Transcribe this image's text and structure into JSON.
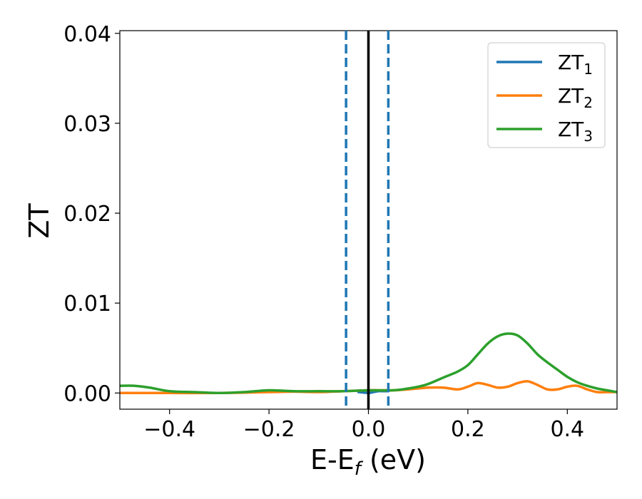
{
  "chart_data": {
    "type": "line",
    "title": "",
    "xlabel": "E-E",
    "xlabel_subscript": "f",
    "xlabel_unit": " (eV)",
    "ylabel": "ZT",
    "xlim": [
      -0.5,
      0.5
    ],
    "ylim": [
      -0.0018,
      0.0403
    ],
    "grid": false,
    "legend_position": "top-right",
    "x_ticks": [
      -0.4,
      -0.2,
      0.0,
      0.2,
      0.4
    ],
    "x_tick_labels": [
      "−0.4",
      "−0.2",
      "0.0",
      "0.2",
      "0.4"
    ],
    "y_ticks": [
      0.0,
      0.01,
      0.02,
      0.03,
      0.04
    ],
    "y_tick_labels": [
      "0.00",
      "0.01",
      "0.02",
      "0.03",
      "0.04"
    ],
    "vertical_lines": [
      {
        "x": -0.045,
        "style": "dashed",
        "color": "#1f77b4"
      },
      {
        "x": 0.04,
        "style": "dashed",
        "color": "#1f77b4"
      },
      {
        "x": 0.0,
        "style": "solid",
        "color": "#000000"
      }
    ],
    "series": [
      {
        "name": "ZT",
        "name_subscript": "1",
        "color": "#1f77b4",
        "x": [
          -0.02,
          -0.01,
          0.0,
          0.01,
          0.02,
          0.03,
          0.04
        ],
        "y": [
          0.0001,
          5e-05,
          0.0,
          0.0001,
          0.0002,
          0.0002,
          0.0002
        ]
      },
      {
        "name": "ZT",
        "name_subscript": "2",
        "color": "#ff7f0e",
        "x": [
          -0.5,
          -0.4,
          -0.3,
          -0.2,
          -0.15,
          -0.1,
          -0.05,
          0.0,
          0.03,
          0.05,
          0.08,
          0.12,
          0.15,
          0.18,
          0.2,
          0.22,
          0.24,
          0.26,
          0.28,
          0.3,
          0.32,
          0.34,
          0.36,
          0.38,
          0.4,
          0.42,
          0.44,
          0.46,
          0.48,
          0.5
        ],
        "y": [
          0.0,
          0.0,
          0.0,
          0.0001,
          0.00015,
          0.0001,
          0.0002,
          0.0003,
          0.0003,
          0.0003,
          0.0004,
          0.0006,
          0.0006,
          0.0004,
          0.0007,
          0.0011,
          0.0009,
          0.0006,
          0.0007,
          0.0011,
          0.0013,
          0.0009,
          0.0004,
          0.0004,
          0.0007,
          0.0008,
          0.0004,
          0.0001,
          0.0001,
          0.0001
        ]
      },
      {
        "name": "ZT",
        "name_subscript": "3",
        "color": "#2ca02c",
        "x": [
          -0.5,
          -0.47,
          -0.44,
          -0.4,
          -0.35,
          -0.3,
          -0.25,
          -0.2,
          -0.15,
          -0.1,
          -0.05,
          0.0,
          0.05,
          0.08,
          0.1,
          0.12,
          0.15,
          0.18,
          0.2,
          0.22,
          0.24,
          0.26,
          0.28,
          0.3,
          0.32,
          0.34,
          0.36,
          0.38,
          0.4,
          0.42,
          0.44,
          0.46,
          0.48,
          0.5
        ],
        "y": [
          0.0008,
          0.0008,
          0.0006,
          0.0002,
          0.0001,
          0.0,
          0.0001,
          0.0003,
          0.0002,
          0.0002,
          0.0002,
          0.0003,
          0.0003,
          0.0005,
          0.0007,
          0.001,
          0.0017,
          0.0024,
          0.0031,
          0.0043,
          0.0055,
          0.0063,
          0.0066,
          0.0064,
          0.0055,
          0.0043,
          0.0034,
          0.0026,
          0.0018,
          0.0012,
          0.0008,
          0.0005,
          0.0003,
          0.0001
        ]
      }
    ]
  }
}
